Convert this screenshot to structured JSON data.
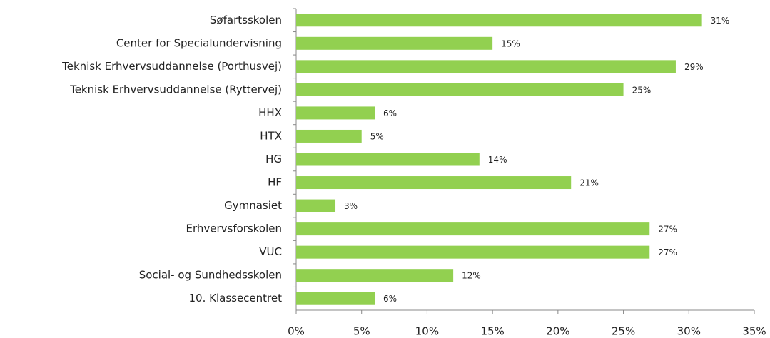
{
  "chart_data": {
    "type": "bar",
    "orientation": "horizontal",
    "categories": [
      "Søfartsskolen",
      "Center for Specialundervisning",
      "Teknisk Erhvervsuddannelse (Porthusvej)",
      "Teknisk Erhvervsuddannelse (Ryttervej)",
      "HHX",
      "HTX",
      "HG",
      "HF",
      "Gymnasiet",
      "Erhvervsforskolen",
      "VUC",
      "Social- og Sundhedsskolen",
      "10. Klassecentret"
    ],
    "values": [
      31,
      15,
      29,
      25,
      6,
      5,
      14,
      21,
      3,
      27,
      27,
      12,
      6
    ],
    "value_labels": [
      "31%",
      "15%",
      "29%",
      "25%",
      "6%",
      "5%",
      "14%",
      "21%",
      "3%",
      "27%",
      "27%",
      "12%",
      "6%"
    ],
    "color": "#92d050",
    "xlim": [
      0,
      35
    ],
    "xticks": [
      {
        "value": 0,
        "label": "0%"
      },
      {
        "value": 5,
        "label": "5%"
      },
      {
        "value": 10,
        "label": "10%"
      },
      {
        "value": 15,
        "label": "15%"
      },
      {
        "value": 20,
        "label": "20%"
      },
      {
        "value": 25,
        "label": "25%"
      },
      {
        "value": 30,
        "label": "30%"
      },
      {
        "value": 35,
        "label": "35%"
      }
    ],
    "grid": false
  }
}
